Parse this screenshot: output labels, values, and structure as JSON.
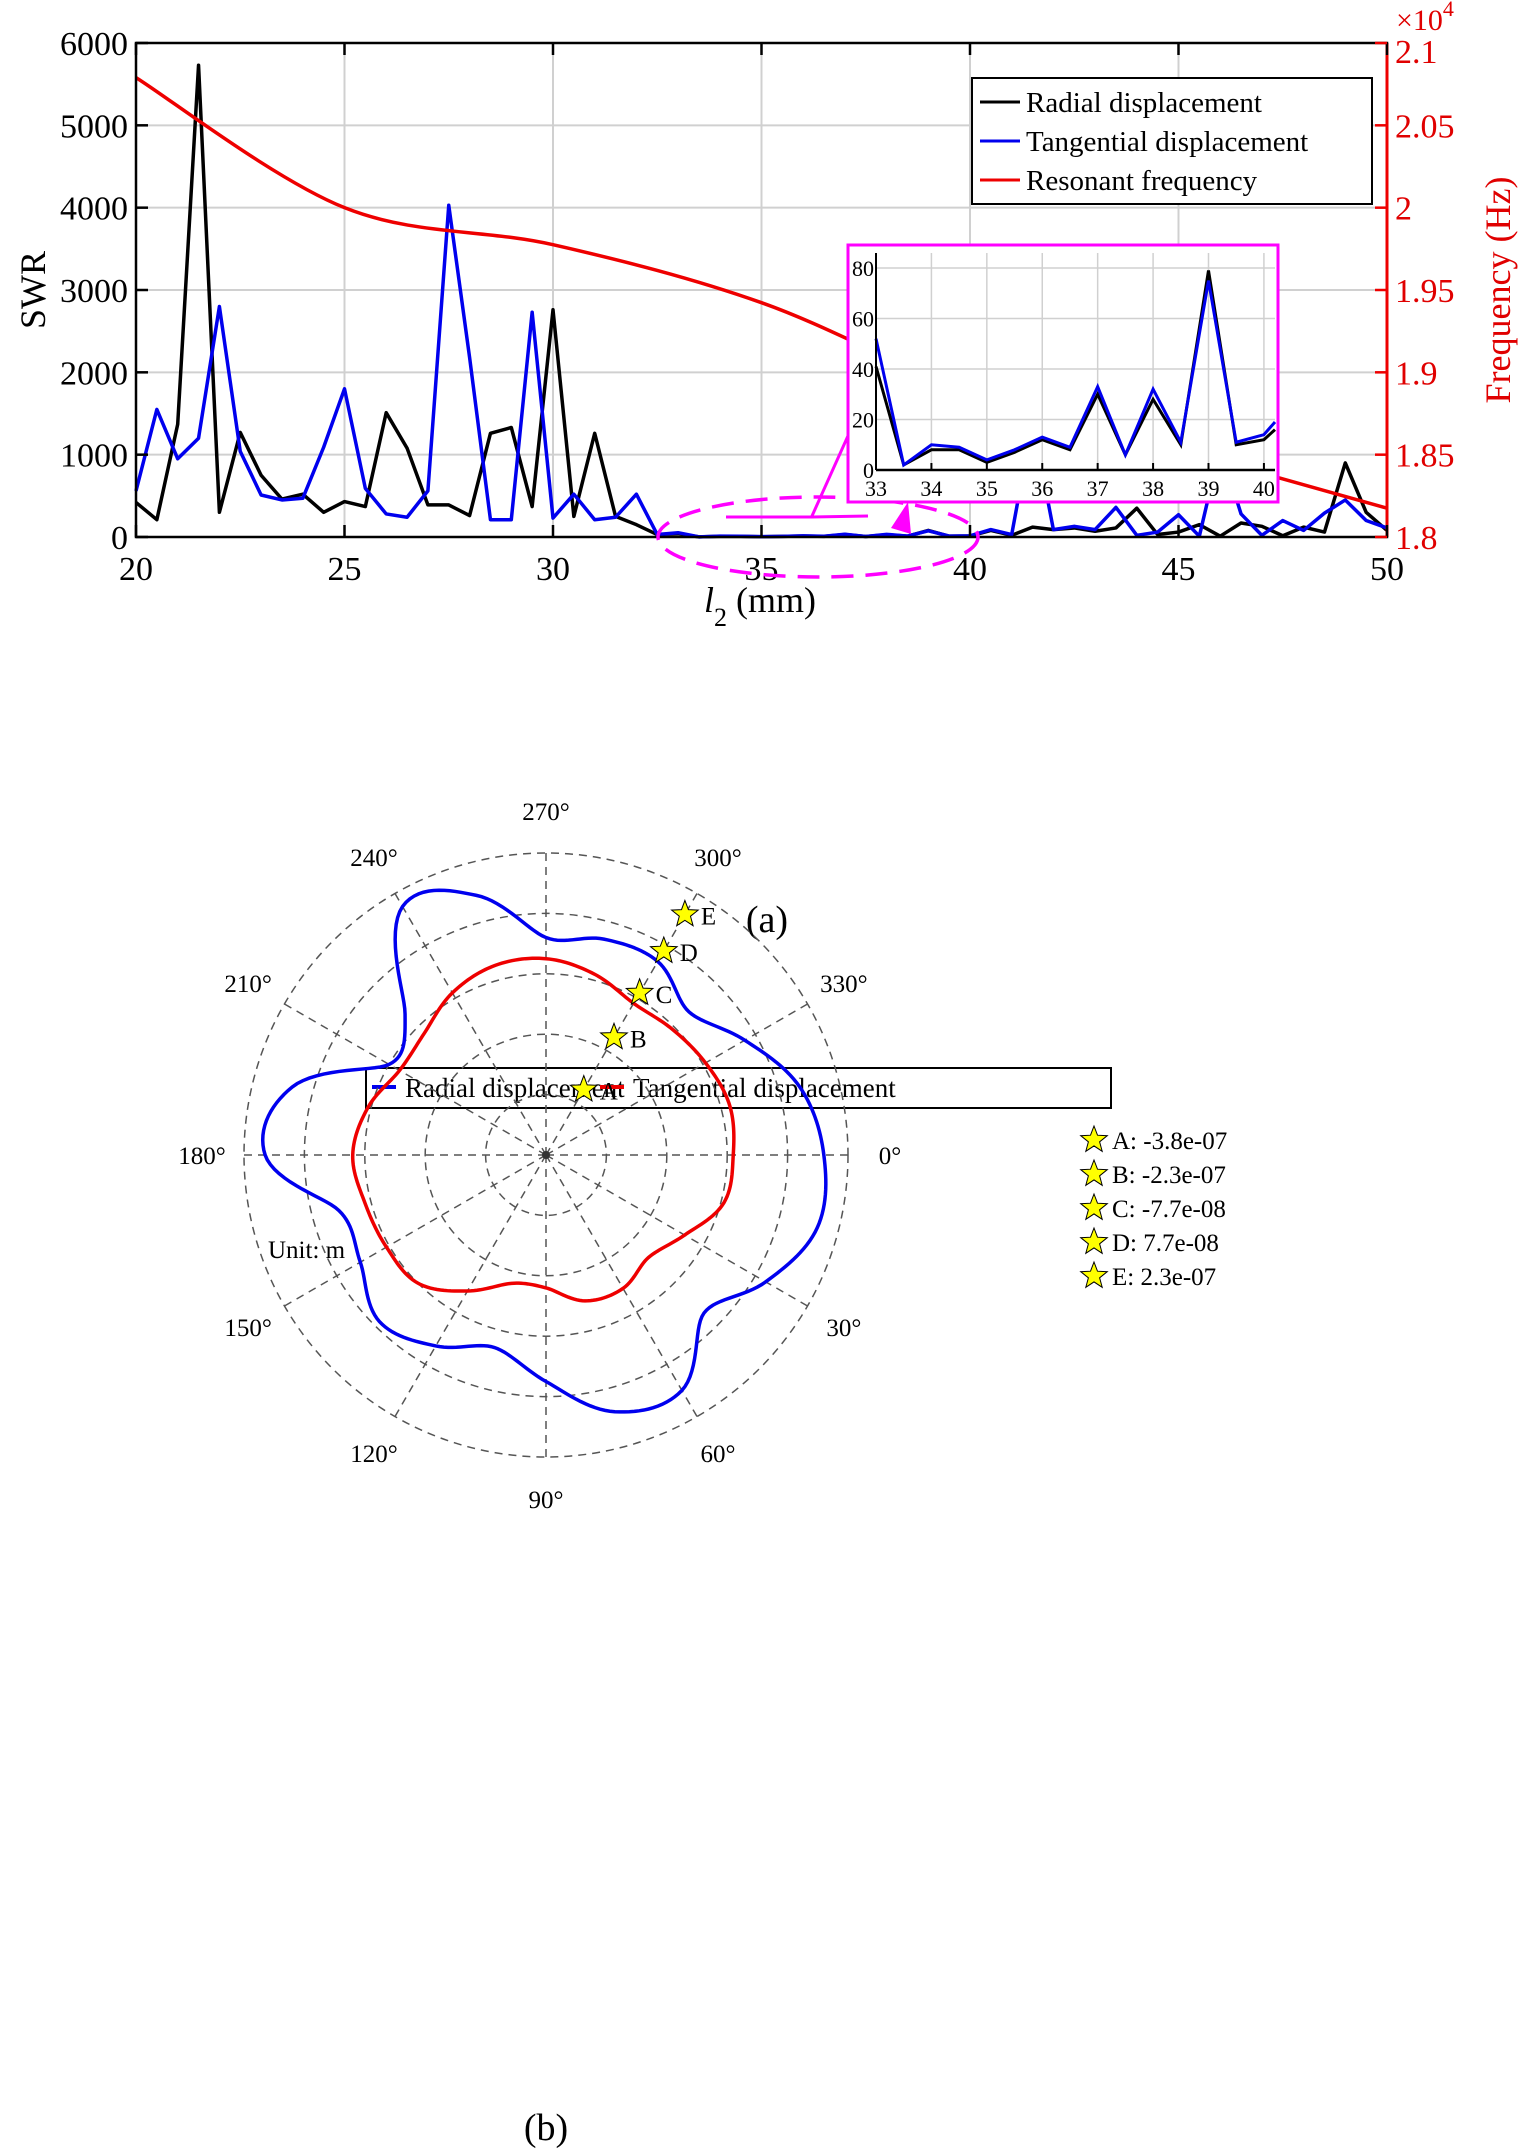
{
  "chart_data": [
    {
      "id": "a",
      "type": "line",
      "caption": "(a)",
      "xlabel_main": "l",
      "xlabel_sub": "2",
      "xlabel_unit": " (mm)",
      "ylabel": "SWR",
      "ylabel_right": "Frequency (Hz)",
      "right_axis_multiplier": "×10",
      "right_axis_exponent": "4",
      "xlim": [
        20,
        50
      ],
      "ylim": [
        0,
        6000
      ],
      "ylim_right": [
        1.8,
        2.1
      ],
      "xticks": [
        "20",
        "25",
        "30",
        "35",
        "40",
        "45",
        "50"
      ],
      "xtick_values": [
        20,
        25,
        30,
        35,
        40,
        45,
        50
      ],
      "yticks": [
        "0",
        "1000",
        "2000",
        "3000",
        "4000",
        "5000",
        "6000"
      ],
      "ytick_values": [
        0,
        1000,
        2000,
        3000,
        4000,
        5000,
        6000
      ],
      "yticks_right": [
        "1.8",
        "1.85",
        "1.9",
        "1.95",
        "2",
        "2.05",
        "2.1"
      ],
      "ytick_right_values": [
        1.8,
        1.85,
        1.9,
        1.95,
        2.0,
        2.05,
        2.1
      ],
      "grid": true,
      "legend_position": "top-right",
      "x": [
        20,
        20.5,
        21,
        21.5,
        22,
        22.5,
        23,
        23.5,
        24,
        24.5,
        25,
        25.5,
        26,
        26.5,
        27,
        27.5,
        28,
        28.5,
        29,
        29.5,
        30,
        30.5,
        31,
        31.5,
        32,
        32.5,
        33,
        33.5,
        34,
        34.5,
        35,
        35.5,
        36,
        36.5,
        37,
        37.5,
        38,
        38.5,
        39,
        39.5,
        40,
        40.5,
        41,
        41.5,
        42,
        42.5,
        43,
        43.5,
        44,
        44.5,
        45,
        45.5,
        46,
        46.5,
        47,
        47.5,
        48,
        48.5,
        49,
        49.5,
        50
      ],
      "series": [
        {
          "name": "Radial displacement",
          "color": "#000000",
          "axis": "left",
          "values": [
            420,
            210,
            1370,
            5730,
            300,
            1270,
            750,
            460,
            520,
            300,
            430,
            370,
            1510,
            1080,
            390,
            390,
            260,
            1260,
            1330,
            370,
            2760,
            250,
            1260,
            250,
            150,
            30,
            40,
            2,
            8,
            8,
            3,
            7,
            12,
            8,
            30,
            6,
            28,
            10,
            80,
            10,
            12,
            80,
            20,
            120,
            90,
            110,
            70,
            110,
            350,
            30,
            60,
            150,
            10,
            170,
            130,
            15,
            120,
            60,
            900,
            300,
            80
          ],
          "note": "values for 33–40 read from inset"
        },
        {
          "name": "Tangential displacement",
          "color": "#0000ee",
          "axis": "left",
          "values": [
            560,
            1550,
            950,
            1200,
            2800,
            1040,
            510,
            450,
            470,
            1090,
            1800,
            590,
            280,
            240,
            560,
            4030,
            2180,
            210,
            210,
            2730,
            230,
            520,
            210,
            240,
            520,
            30,
            52,
            2,
            10,
            9,
            4,
            8,
            13,
            9,
            33,
            6,
            32,
            11,
            75,
            11,
            14,
            90,
            30,
            1400,
            90,
            130,
            90,
            360,
            20,
            60,
            270,
            10,
            1090,
            280,
            20,
            200,
            80,
            290,
            450,
            200,
            110
          ]
        },
        {
          "name": "Resonant frequency",
          "color": "#ee0000",
          "axis": "right",
          "x": [
            20,
            25,
            30,
            35,
            40,
            45,
            50
          ],
          "values": [
            2.079,
            2.0,
            1.9775,
            1.9423,
            1.888,
            1.853,
            1.8175
          ],
          "unit": "x10^4 Hz"
        }
      ],
      "inset": {
        "xlim": [
          33,
          40.2
        ],
        "ylim": [
          0,
          80
        ],
        "xticks": [
          "33",
          "34",
          "35",
          "36",
          "37",
          "38",
          "39",
          "40"
        ],
        "xtick_values": [
          33,
          34,
          35,
          36,
          37,
          38,
          39,
          40
        ],
        "yticks": [
          "0",
          "20",
          "40",
          "60",
          "80"
        ],
        "ytick_values": [
          0,
          20,
          40,
          60,
          80
        ],
        "x": [
          33,
          33.5,
          34,
          34.5,
          35,
          35.5,
          36,
          36.5,
          37,
          37.5,
          38,
          38.5,
          39,
          39.5,
          40,
          40.2
        ],
        "series": [
          {
            "name": "Radial displacement",
            "color": "#000000",
            "values": [
              41,
              2,
              8,
              8,
              3,
              7,
              12,
              8,
              30,
              6,
              28,
              10,
              79,
              10,
              12,
              16
            ]
          },
          {
            "name": "Tangential displacement",
            "color": "#0000ee",
            "values": [
              52,
              2,
              10,
              9,
              4,
              8,
              13,
              9,
              33,
              6,
              32,
              11,
              75,
              11,
              14,
              19
            ]
          }
        ],
        "frame_color": "#ff00ff",
        "annotation": "dashed ellipse at l2 ≈ 33–41 with arrow pointing to inset"
      }
    },
    {
      "id": "b",
      "type": "line",
      "subtype": "polar",
      "caption": "(b)",
      "unit_label": "Unit: m",
      "angle_ticks": [
        "0°",
        "30°",
        "60°",
        "90°",
        "120°",
        "150°",
        "180°",
        "210°",
        "240°",
        "270°",
        "300°",
        "330°"
      ],
      "angle_tick_values": [
        0,
        30,
        60,
        90,
        120,
        150,
        180,
        210,
        240,
        270,
        300,
        330
      ],
      "ring_count": 5,
      "grid": true,
      "legend_position": "top",
      "series": [
        {
          "name": "Radial displacement",
          "color": "#0000ee",
          "theta": [
            0,
            15,
            30,
            45,
            60,
            75,
            90,
            105,
            120,
            135,
            150,
            165,
            180,
            195,
            210,
            225,
            240,
            255,
            270,
            285,
            300,
            315,
            330,
            345,
            360
          ],
          "r": [
            4.6,
            4.65,
            4.2,
            3.7,
            4.5,
            4.4,
            3.75,
            3.3,
            3.65,
            3.9,
            3.55,
            3.55,
            4.65,
            4.35,
            3.0,
            3.3,
            4.75,
            4.45,
            3.6,
            3.7,
            3.7,
            3.35,
            3.8,
            4.35,
            4.6
          ]
        },
        {
          "name": "Tangential displacement",
          "color": "#ee0000",
          "theta": [
            0,
            15,
            30,
            45,
            60,
            75,
            90,
            105,
            120,
            135,
            150,
            165,
            180,
            195,
            210,
            225,
            240,
            255,
            270,
            285,
            300,
            315,
            330,
            345,
            360
          ],
          "r": [
            3.1,
            3.05,
            2.65,
            2.4,
            2.55,
            2.5,
            2.2,
            2.2,
            2.6,
            3.0,
            3.05,
            3.1,
            3.2,
            3.05,
            2.8,
            2.85,
            3.1,
            3.25,
            3.25,
            3.1,
            2.9,
            2.95,
            3.05,
            3.15,
            3.1
          ]
        }
      ],
      "markers": [
        {
          "label": "A",
          "value": "-3.8e-07",
          "legend_text": "A: -3.8e-07",
          "theta": 300,
          "ring": 1
        },
        {
          "label": "B",
          "value": "-2.3e-07",
          "legend_text": "B: -2.3e-07",
          "theta": 300,
          "ring": 2
        },
        {
          "label": "C",
          "value": "-7.7e-08",
          "legend_text": "C: -7.7e-08",
          "theta": 300,
          "ring": 3
        },
        {
          "label": "D",
          "value": "7.7e-08",
          "legend_text": "D: 7.7e-08",
          "theta": 300,
          "ring": 4
        },
        {
          "label": "E",
          "value": "2.3e-07",
          "legend_text": "E: 2.3e-07",
          "theta": 300,
          "ring": 5
        }
      ],
      "marker_color": "#ffff00"
    }
  ]
}
